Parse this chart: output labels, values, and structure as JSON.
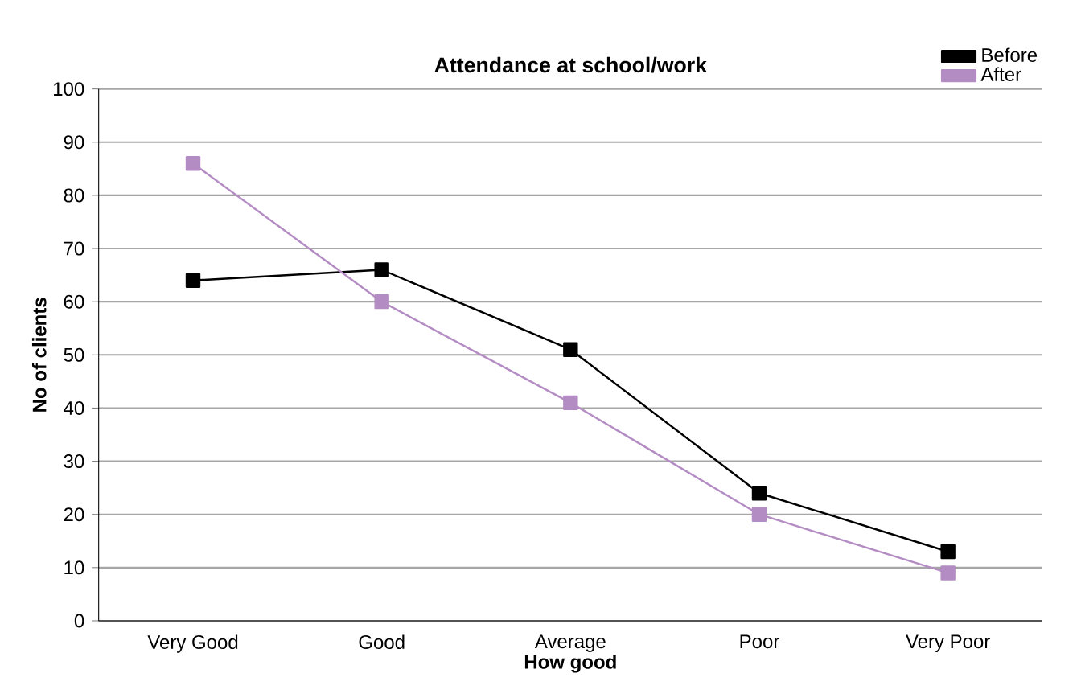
{
  "chart_data": {
    "type": "line",
    "title": "Attendance at school/work",
    "xlabel": "How good",
    "ylabel": "No of clients",
    "categories": [
      "Very Good",
      "Good",
      "Average",
      "Poor",
      "Very Poor"
    ],
    "series": [
      {
        "name": "Before",
        "color": "#000000",
        "values": [
          64,
          66,
          51,
          24,
          13
        ]
      },
      {
        "name": "After",
        "color": "#b48cc4",
        "values": [
          86,
          60,
          41,
          20,
          9
        ]
      }
    ],
    "ylim": [
      0,
      100
    ],
    "yticks": [
      0,
      10,
      20,
      30,
      40,
      50,
      60,
      70,
      80,
      90,
      100
    ],
    "grid": "y",
    "legend": "top right",
    "marker": "square",
    "line_style": "solid"
  }
}
